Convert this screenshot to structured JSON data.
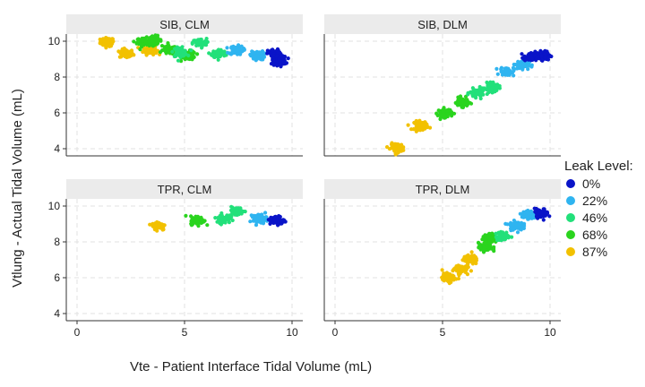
{
  "chart_data": {
    "type": "scatter",
    "xlabel": "Vte - Patient Interface Tidal Volume (mL)",
    "ylabel": "Vtlung - Actual Tidal Volume (mL)",
    "xlim": [
      -0.5,
      10.5
    ],
    "ylim": [
      3.6,
      10.4
    ],
    "x_ticks": [
      "0",
      "5",
      "10"
    ],
    "y_ticks": [
      "4",
      "6",
      "8",
      "10"
    ],
    "grid": true,
    "legend": {
      "title": "Leak Level:",
      "position": "right",
      "entries": [
        {
          "label": "0%",
          "color": "#0a14c8"
        },
        {
          "label": "22%",
          "color": "#2fb4f0"
        },
        {
          "label": "46%",
          "color": "#22e07a"
        },
        {
          "label": "68%",
          "color": "#2ad41e"
        },
        {
          "label": "87%",
          "color": "#f2c100"
        }
      ]
    },
    "facets": [
      {
        "title": "SIB, CLM",
        "clusters": [
          {
            "leak": "87%",
            "x": 1.4,
            "y": 9.95
          },
          {
            "leak": "87%",
            "x": 2.3,
            "y": 9.3
          },
          {
            "leak": "87%",
            "x": 3.4,
            "y": 9.5
          },
          {
            "leak": "68%",
            "x": 3.1,
            "y": 9.95
          },
          {
            "leak": "68%",
            "x": 3.6,
            "y": 10.05
          },
          {
            "leak": "68%",
            "x": 4.3,
            "y": 9.5
          },
          {
            "leak": "68%",
            "x": 5.2,
            "y": 9.2
          },
          {
            "leak": "46%",
            "x": 4.8,
            "y": 9.4
          },
          {
            "leak": "46%",
            "x": 5.7,
            "y": 9.9
          },
          {
            "leak": "46%",
            "x": 6.6,
            "y": 9.3
          },
          {
            "leak": "22%",
            "x": 7.4,
            "y": 9.5
          },
          {
            "leak": "22%",
            "x": 8.4,
            "y": 9.2
          },
          {
            "leak": "0%",
            "x": 9.2,
            "y": 9.3
          },
          {
            "leak": "0%",
            "x": 9.4,
            "y": 8.9
          }
        ]
      },
      {
        "title": "SIB, DLM",
        "clusters": [
          {
            "leak": "87%",
            "x": 2.9,
            "y": 4.05
          },
          {
            "leak": "87%",
            "x": 4.0,
            "y": 5.3
          },
          {
            "leak": "68%",
            "x": 5.1,
            "y": 6.0
          },
          {
            "leak": "68%",
            "x": 5.9,
            "y": 6.6
          },
          {
            "leak": "46%",
            "x": 6.6,
            "y": 7.1
          },
          {
            "leak": "46%",
            "x": 7.3,
            "y": 7.4
          },
          {
            "leak": "22%",
            "x": 8.0,
            "y": 8.3
          },
          {
            "leak": "22%",
            "x": 8.7,
            "y": 8.7
          },
          {
            "leak": "0%",
            "x": 9.1,
            "y": 9.1
          },
          {
            "leak": "0%",
            "x": 9.7,
            "y": 9.2
          }
        ]
      },
      {
        "title": "TPR, CLM",
        "clusters": [
          {
            "leak": "87%",
            "x": 3.8,
            "y": 8.9
          },
          {
            "leak": "68%",
            "x": 5.6,
            "y": 9.2
          },
          {
            "leak": "46%",
            "x": 6.8,
            "y": 9.3
          },
          {
            "leak": "46%",
            "x": 7.4,
            "y": 9.7
          },
          {
            "leak": "22%",
            "x": 8.5,
            "y": 9.3
          },
          {
            "leak": "0%",
            "x": 9.3,
            "y": 9.2
          }
        ]
      },
      {
        "title": "TPR, DLM",
        "clusters": [
          {
            "leak": "87%",
            "x": 5.3,
            "y": 6.0
          },
          {
            "leak": "87%",
            "x": 5.8,
            "y": 6.5
          },
          {
            "leak": "87%",
            "x": 6.3,
            "y": 7.0
          },
          {
            "leak": "68%",
            "x": 7.0,
            "y": 7.7
          },
          {
            "leak": "68%",
            "x": 7.2,
            "y": 8.2
          },
          {
            "leak": "46%",
            "x": 7.8,
            "y": 8.3
          },
          {
            "leak": "22%",
            "x": 8.4,
            "y": 8.9
          },
          {
            "leak": "22%",
            "x": 9.0,
            "y": 9.5
          },
          {
            "leak": "0%",
            "x": 9.6,
            "y": 9.6
          }
        ]
      }
    ]
  }
}
